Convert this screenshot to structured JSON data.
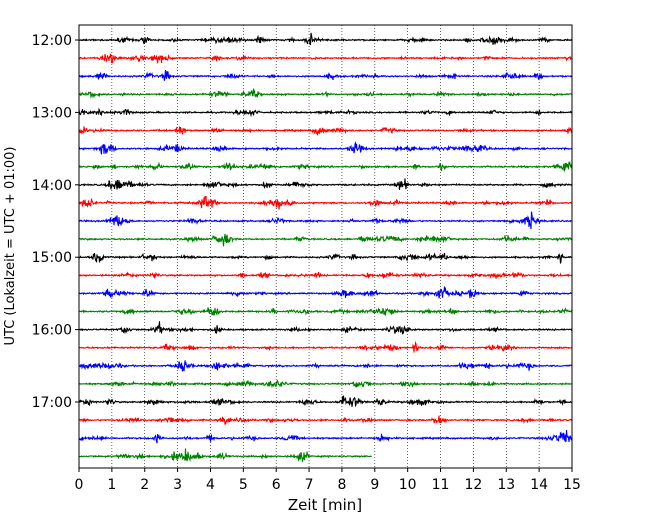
{
  "chart_data": {
    "type": "line",
    "title": "",
    "xlabel": "Zeit  [min]",
    "ylabel": "UTC (Lokalzeit = UTC + 01:00)",
    "xlim": [
      0,
      15
    ],
    "x_ticks": [
      "0",
      "1",
      "2",
      "3",
      "4",
      "5",
      "6",
      "7",
      "8",
      "9",
      "10",
      "11",
      "12",
      "13",
      "14",
      "15"
    ],
    "y_tick_labels": [
      "12:00",
      "13:00",
      "14:00",
      "15:00",
      "16:00",
      "17:00"
    ],
    "grid": "vertical dotted lines at each minute",
    "trace_interval_minutes": 15,
    "trace_color_cycle": [
      "#000000",
      "#ff0000",
      "#0000ff",
      "#008000"
    ],
    "traces": [
      {
        "start": "12:00",
        "color": "#000000",
        "end_min": 15
      },
      {
        "start": "12:15",
        "color": "#ff0000",
        "end_min": 15
      },
      {
        "start": "12:30",
        "color": "#0000ff",
        "end_min": 15
      },
      {
        "start": "12:45",
        "color": "#008000",
        "end_min": 15
      },
      {
        "start": "13:00",
        "color": "#000000",
        "end_min": 15
      },
      {
        "start": "13:15",
        "color": "#ff0000",
        "end_min": 15
      },
      {
        "start": "13:30",
        "color": "#0000ff",
        "end_min": 15
      },
      {
        "start": "13:45",
        "color": "#008000",
        "end_min": 15
      },
      {
        "start": "14:00",
        "color": "#000000",
        "end_min": 15
      },
      {
        "start": "14:15",
        "color": "#ff0000",
        "end_min": 15
      },
      {
        "start": "14:30",
        "color": "#0000ff",
        "end_min": 15
      },
      {
        "start": "14:45",
        "color": "#008000",
        "end_min": 15
      },
      {
        "start": "15:00",
        "color": "#000000",
        "end_min": 15
      },
      {
        "start": "15:15",
        "color": "#ff0000",
        "end_min": 15
      },
      {
        "start": "15:30",
        "color": "#0000ff",
        "end_min": 15
      },
      {
        "start": "15:45",
        "color": "#008000",
        "end_min": 15
      },
      {
        "start": "16:00",
        "color": "#000000",
        "end_min": 15
      },
      {
        "start": "16:15",
        "color": "#ff0000",
        "end_min": 15
      },
      {
        "start": "16:30",
        "color": "#0000ff",
        "end_min": 15
      },
      {
        "start": "16:45",
        "color": "#008000",
        "end_min": 15
      },
      {
        "start": "17:00",
        "color": "#000000",
        "end_min": 15
      },
      {
        "start": "17:15",
        "color": "#ff0000",
        "end_min": 15
      },
      {
        "start": "17:30",
        "color": "#0000ff",
        "end_min": 15
      },
      {
        "start": "17:45",
        "color": "#008000",
        "end_min": 8.9
      }
    ]
  }
}
